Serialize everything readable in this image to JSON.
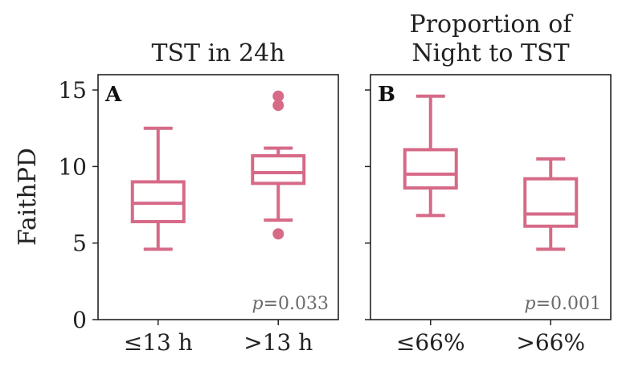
{
  "figure": {
    "ylabel": "FaithPD",
    "accent_color": "#d66a87"
  },
  "chart_data": [
    {
      "type": "box",
      "panel_label": "A",
      "title": "TST in 24h",
      "title_lines": [
        "TST in 24h"
      ],
      "categories": [
        "≤13 h",
        ">13 h"
      ],
      "ylim": [
        0,
        16
      ],
      "yticks": [
        0,
        5,
        10,
        15
      ],
      "grid": false,
      "annotation": {
        "italic": "p",
        "rest": "=0.033"
      },
      "boxes": [
        {
          "category": "≤13 h",
          "whislo": 4.6,
          "q1": 6.4,
          "med": 7.6,
          "q3": 9.0,
          "whishi": 12.5,
          "fliers": []
        },
        {
          "category": ">13 h",
          "whislo": 6.5,
          "q1": 8.9,
          "med": 9.6,
          "q3": 10.7,
          "whishi": 11.2,
          "fliers": [
            5.6,
            14.0,
            14.6
          ]
        }
      ]
    },
    {
      "type": "box",
      "panel_label": "B",
      "title": "Proportion of Night to TST",
      "title_lines": [
        "Proportion of",
        "Night to TST"
      ],
      "categories": [
        "≤66%",
        ">66%"
      ],
      "ylim": [
        0,
        16
      ],
      "yticks": [
        0,
        5,
        10,
        15
      ],
      "grid": false,
      "annotation": {
        "italic": "p",
        "rest": "=0.001"
      },
      "boxes": [
        {
          "category": "≤66%",
          "whislo": 6.8,
          "q1": 8.6,
          "med": 9.5,
          "q3": 11.1,
          "whishi": 14.6,
          "fliers": []
        },
        {
          "category": ">66%",
          "whislo": 4.6,
          "q1": 6.1,
          "med": 6.9,
          "q3": 9.2,
          "whishi": 10.5,
          "fliers": []
        }
      ]
    }
  ]
}
